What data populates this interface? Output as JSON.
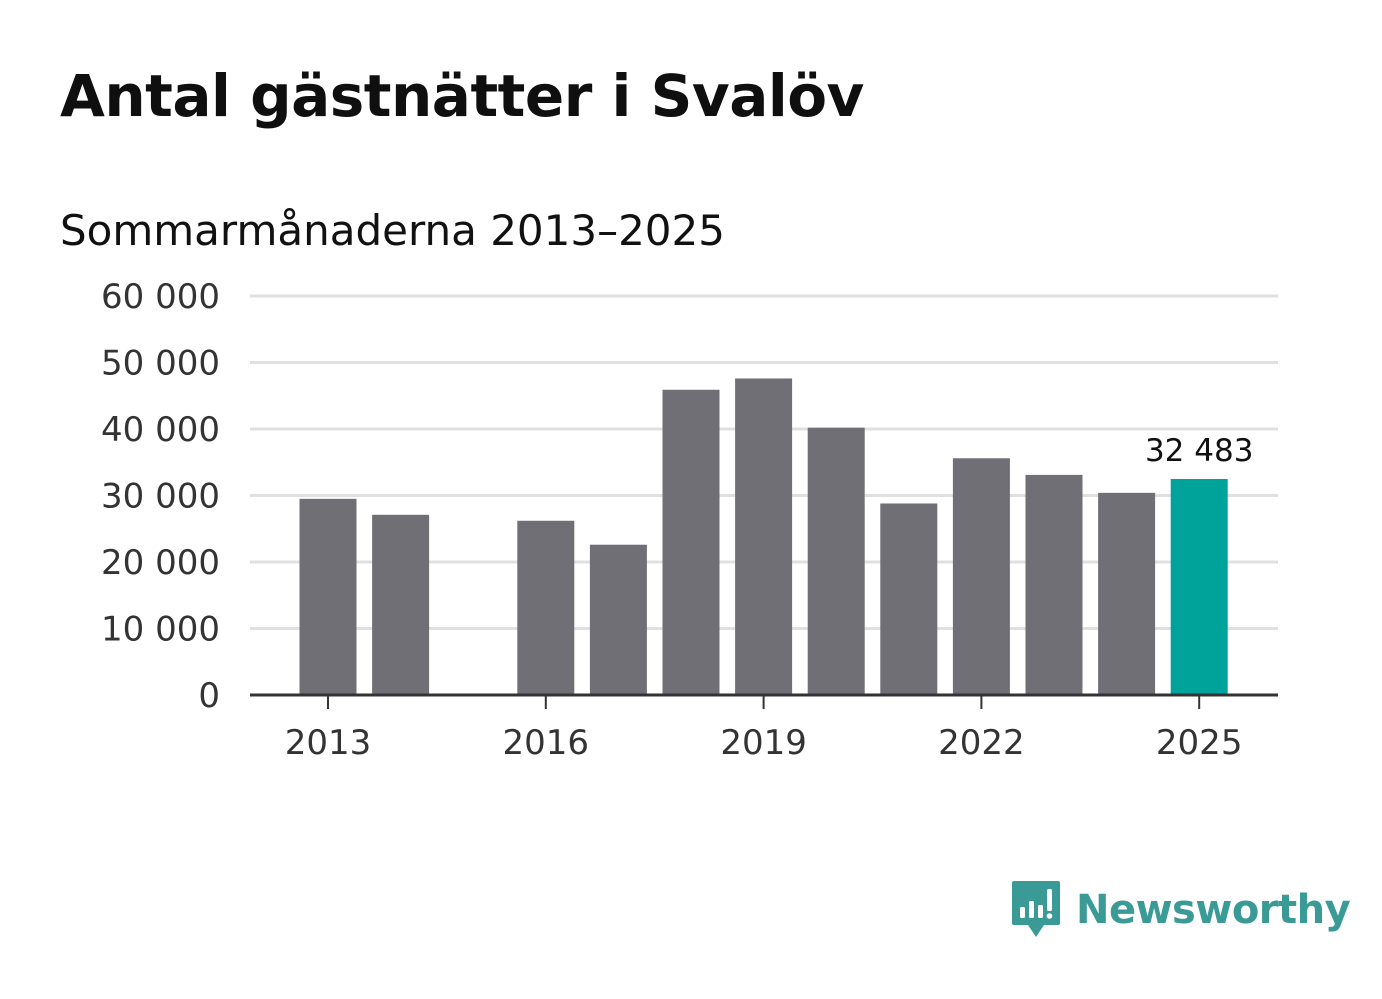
{
  "title": "Antal gästnätter i Svalöv",
  "subtitle": "Sommarmånaderna 2013–2025",
  "brand": {
    "name": "Newsworthy",
    "logo_icon": "chart-bubble-icon",
    "color": "#3a9a96"
  },
  "colors": {
    "bar_default": "#706f75",
    "bar_highlight": "#00a39a",
    "grid": "#e0e0e0",
    "axis": "#333333"
  },
  "chart_data": {
    "type": "bar",
    "categories": [
      "2013",
      "2014",
      "2015",
      "2016",
      "2017",
      "2018",
      "2019",
      "2020",
      "2021",
      "2022",
      "2023",
      "2024",
      "2025"
    ],
    "values": [
      29500,
      27100,
      null,
      26200,
      22600,
      45900,
      47600,
      40200,
      28800,
      35600,
      33100,
      30400,
      32483
    ],
    "highlight_index": 12,
    "data_labels": [
      {
        "category": "2025",
        "text": "32 483"
      }
    ],
    "y_ticks": [
      {
        "value": 0,
        "label": "0"
      },
      {
        "value": 10000,
        "label": "10 000"
      },
      {
        "value": 20000,
        "label": "20 000"
      },
      {
        "value": 30000,
        "label": "30 000"
      },
      {
        "value": 40000,
        "label": "40 000"
      },
      {
        "value": 50000,
        "label": "50 000"
      },
      {
        "value": 60000,
        "label": "60 000"
      }
    ],
    "x_ticks": [
      "2013",
      "2016",
      "2019",
      "2022",
      "2025"
    ],
    "ylim": [
      0,
      60000
    ],
    "grid": true,
    "xlabel": "",
    "ylabel": ""
  }
}
